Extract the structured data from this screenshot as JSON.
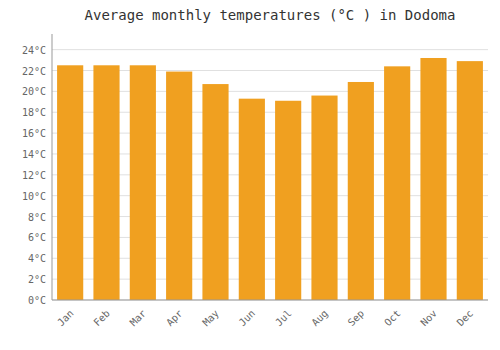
{
  "chart_data": {
    "type": "bar",
    "title": "Average monthly temperatures (°C ) in Dodoma",
    "categories": [
      "Jan",
      "Feb",
      "Mar",
      "Apr",
      "May",
      "Jun",
      "Jul",
      "Aug",
      "Sep",
      "Oct",
      "Nov",
      "Dec"
    ],
    "values": [
      22.5,
      22.5,
      22.5,
      21.9,
      20.7,
      19.3,
      19.1,
      19.6,
      20.9,
      22.4,
      23.2,
      22.9
    ],
    "color": "#F0A020",
    "ylim": [
      0,
      25.5
    ],
    "yticks": [
      {
        "value": 0,
        "label": "0°C"
      },
      {
        "value": 2,
        "label": "2°C"
      },
      {
        "value": 4,
        "label": "4°C"
      },
      {
        "value": 6,
        "label": "6°C"
      },
      {
        "value": 8,
        "label": "8°C"
      },
      {
        "value": 10,
        "label": "10°C"
      },
      {
        "value": 12,
        "label": "12°C"
      },
      {
        "value": 14,
        "label": "14°C"
      },
      {
        "value": 16,
        "label": "16°C"
      },
      {
        "value": 18,
        "label": "18°C"
      },
      {
        "value": 20,
        "label": "20°C"
      },
      {
        "value": 22,
        "label": "22°C"
      },
      {
        "value": 24,
        "label": "24°C"
      }
    ],
    "grid": true
  }
}
